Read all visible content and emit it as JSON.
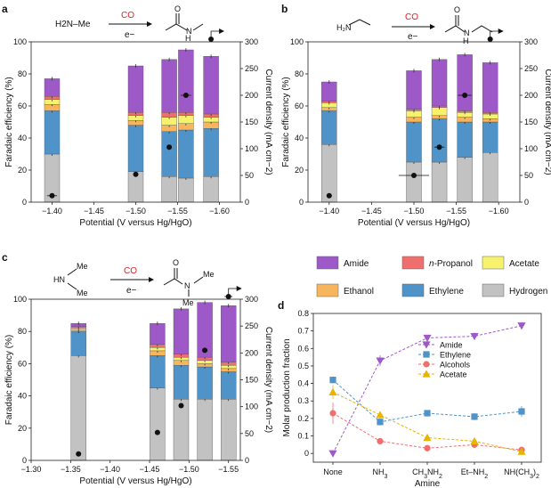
{
  "figure": {
    "colors": {
      "amide": "#9d59c8",
      "propanol": "#ef6f6f",
      "acetate": "#f7f26e",
      "ethanol": "#f7b55d",
      "ethylene": "#4f93c9",
      "hydrogen": "#c2c2c2",
      "reagent": "#e0202a"
    },
    "legend_main": [
      {
        "key": "amide",
        "label": "Amide"
      },
      {
        "key": "propanol",
        "label": "n-Propanol"
      },
      {
        "key": "acetate",
        "label": "Acetate"
      },
      {
        "key": "ethanol",
        "label": "Ethanol"
      },
      {
        "key": "ethylene",
        "label": "Ethylene"
      },
      {
        "key": "hydrogen",
        "label": "Hydrogen"
      }
    ],
    "schemes": {
      "a": {
        "reactant": "H2N–Me",
        "reagent": "CO",
        "electron": "e−"
      },
      "b": {
        "reagent": "CO",
        "electron": "e−"
      },
      "c": {
        "reagent": "CO",
        "electron": "e−"
      }
    }
  },
  "chart_data": [
    {
      "panel": "a",
      "type": "bar",
      "stacked": true,
      "xlabel": "Potential (V versus Hg/HgO)",
      "ylabel": "Faradaic efficiency (%)",
      "y2label": "Current density (mA cm−2)",
      "xlim": [
        -1.375,
        -1.625
      ],
      "ylim": [
        0,
        100
      ],
      "y2lim": [
        0,
        300
      ],
      "xticks": [
        -1.4,
        -1.45,
        -1.5,
        -1.55,
        -1.6
      ],
      "xtick_labels": [
        "−1.40",
        "−1.45",
        "−1.50",
        "−1.55",
        "−1.60"
      ],
      "yticks": [
        0,
        20,
        40,
        60,
        80,
        100
      ],
      "y2ticks": [
        0,
        50,
        100,
        150,
        200,
        250,
        300
      ],
      "x": [
        -1.4,
        -1.5,
        -1.54,
        -1.56,
        -1.59
      ],
      "series": [
        {
          "key": "hydrogen",
          "values": [
            30,
            19,
            16,
            15,
            16
          ]
        },
        {
          "key": "ethylene",
          "values": [
            27,
            29,
            28,
            30,
            30
          ]
        },
        {
          "key": "ethanol",
          "values": [
            4,
            3,
            4,
            4,
            4
          ]
        },
        {
          "key": "acetate",
          "values": [
            3,
            3,
            5,
            5,
            3
          ]
        },
        {
          "key": "propanol",
          "values": [
            2,
            2,
            3,
            2,
            2
          ]
        },
        {
          "key": "amide",
          "values": [
            11,
            29,
            33,
            39,
            36
          ]
        }
      ],
      "current_density": [
        12,
        52,
        103,
        200,
        305
      ],
      "current_xerr": [
        0.006,
        0,
        0,
        0.006,
        0
      ]
    },
    {
      "panel": "b",
      "type": "bar",
      "stacked": true,
      "xlabel": "Potential (V versus Hg/HgO)",
      "ylabel": "Faradaic efficiency (%)",
      "y2label": "Current density (mA cm−2)",
      "xlim": [
        -1.375,
        -1.625
      ],
      "ylim": [
        0,
        100
      ],
      "y2lim": [
        0,
        300
      ],
      "xticks": [
        -1.4,
        -1.45,
        -1.5,
        -1.55,
        -1.6
      ],
      "xtick_labels": [
        "−1.40",
        "−1.45",
        "−1.50",
        "−1.55",
        "−1.60"
      ],
      "yticks": [
        0,
        20,
        40,
        60,
        80,
        100
      ],
      "y2ticks": [
        0,
        50,
        100,
        150,
        200,
        250,
        300
      ],
      "x": [
        -1.4,
        -1.5,
        -1.53,
        -1.56,
        -1.59
      ],
      "series": [
        {
          "key": "hydrogen",
          "values": [
            36,
            25,
            25,
            28,
            31
          ]
        },
        {
          "key": "ethylene",
          "values": [
            21,
            25,
            27,
            22,
            19
          ]
        },
        {
          "key": "ethanol",
          "values": [
            2,
            3,
            2,
            3,
            2
          ]
        },
        {
          "key": "acetate",
          "values": [
            3,
            4,
            5,
            3,
            3
          ]
        },
        {
          "key": "propanol",
          "values": [
            1,
            1,
            1,
            1,
            1
          ]
        },
        {
          "key": "amide",
          "values": [
            12,
            24,
            29,
            35,
            31
          ]
        }
      ],
      "current_density": [
        12,
        50,
        103,
        200,
        305
      ],
      "current_xerr": [
        0.003,
        0.018,
        0.006,
        0.008,
        0.003
      ]
    },
    {
      "panel": "c",
      "type": "bar",
      "stacked": true,
      "xlabel": "Potential (V versus Hg/HgO)",
      "ylabel": "Faradaic efficiency (%)",
      "y2label": "Current density (mA cm−2)",
      "xlim": [
        -1.3,
        -1.565
      ],
      "ylim": [
        0,
        100
      ],
      "y2lim": [
        0,
        300
      ],
      "xticks": [
        -1.3,
        -1.35,
        -1.4,
        -1.45,
        -1.5,
        -1.55
      ],
      "xtick_labels": [
        "−1.30",
        "−1.35",
        "−1.40",
        "−1.45",
        "−1.50",
        "−1.55"
      ],
      "yticks": [
        0,
        20,
        40,
        60,
        80,
        100
      ],
      "y2ticks": [
        0,
        50,
        100,
        150,
        200,
        250,
        300
      ],
      "x": [
        -1.36,
        -1.46,
        -1.49,
        -1.52,
        -1.55
      ],
      "series": [
        {
          "key": "hydrogen",
          "values": [
            65,
            45,
            38,
            38,
            38
          ]
        },
        {
          "key": "ethylene",
          "values": [
            15,
            20,
            21,
            20,
            17
          ]
        },
        {
          "key": "ethanol",
          "values": [
            1,
            3,
            3,
            2,
            2
          ]
        },
        {
          "key": "acetate",
          "values": [
            1,
            2,
            2,
            2,
            2
          ]
        },
        {
          "key": "propanol",
          "values": [
            1,
            2,
            2,
            2,
            2
          ]
        },
        {
          "key": "amide",
          "values": [
            2,
            13,
            28,
            34,
            35
          ]
        }
      ],
      "current_density": [
        12,
        52,
        102,
        205,
        305
      ],
      "current_xerr": [
        0,
        0,
        0.003,
        0.003,
        0.005
      ]
    },
    {
      "panel": "d",
      "type": "line",
      "xlabel": "Amine",
      "ylabel": "Molar production fraction",
      "ylim": [
        -0.05,
        0.8
      ],
      "yticks": [
        0,
        0.1,
        0.2,
        0.3,
        0.4,
        0.5,
        0.6,
        0.7,
        0.8
      ],
      "ytick_labels": [
        "0",
        "0.1",
        "0.2",
        "0.3",
        "0.4",
        "0.5",
        "0.6",
        "0.7",
        "0.8"
      ],
      "categories": [
        "None",
        "NH3",
        "CH3NH2",
        "Et–NH2",
        "NH(CH3)2"
      ],
      "series": [
        {
          "name": "Amide",
          "color": "#9d59c8",
          "marker": "triangle-down",
          "values": [
            0.0,
            0.53,
            0.66,
            0.67,
            0.73
          ],
          "errors": [
            0,
            0.03,
            0.015,
            0.02,
            0.02
          ]
        },
        {
          "name": "Ethylene",
          "color": "#4f93c9",
          "marker": "square",
          "values": [
            0.42,
            0.18,
            0.23,
            0.21,
            0.24
          ],
          "errors": [
            0.02,
            0.02,
            0.015,
            0.02,
            0.03
          ]
        },
        {
          "name": "Alcohols",
          "color": "#ef6f6f",
          "marker": "circle",
          "values": [
            0.23,
            0.07,
            0.03,
            0.05,
            0.02
          ],
          "errors": [
            0.06,
            0.01,
            0.01,
            0.01,
            0.01
          ]
        },
        {
          "name": "Acetate",
          "color": "#e8b400",
          "marker": "triangle-up",
          "values": [
            0.35,
            0.22,
            0.09,
            0.07,
            0.01
          ],
          "errors": [
            0.04,
            0.02,
            0.02,
            0.015,
            0.01
          ]
        }
      ]
    }
  ]
}
